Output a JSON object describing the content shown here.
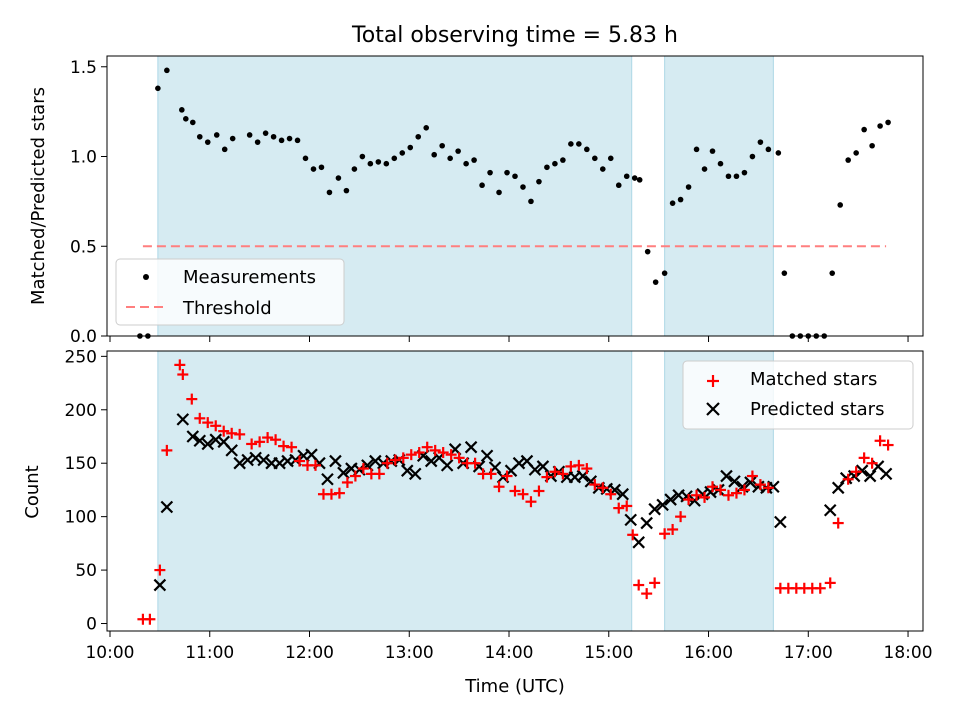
{
  "figure_title": "Total observing time = 5.83 h",
  "chart_data": [
    {
      "type": "scatter",
      "ylabel": "Matched/Predicted stars",
      "xlim": [
        9.97,
        18.15
      ],
      "ylim": [
        0,
        1.56
      ],
      "yticks": [
        0.0,
        0.5,
        1.0,
        1.5
      ],
      "ytick_labels": [
        "0.0",
        "0.5",
        "1.0",
        "1.5"
      ],
      "grid": false,
      "legend": {
        "placement": "lower-left",
        "entries": [
          "Measurements",
          "Threshold"
        ]
      },
      "shaded_intervals": [
        [
          10.48,
          15.23
        ],
        [
          15.56,
          16.65
        ]
      ],
      "shade_color": "#add8e6",
      "threshold": {
        "name": "Threshold",
        "y": 0.5,
        "x": [
          10.33,
          17.78
        ],
        "color": "#ff7f7f"
      },
      "series": [
        {
          "name": "Measurements",
          "color": "#000000",
          "x": [
            10.3,
            10.38,
            10.48,
            10.57,
            10.72,
            10.76,
            10.83,
            10.9,
            10.98,
            11.07,
            11.15,
            11.23,
            11.4,
            11.48,
            11.56,
            11.64,
            11.72,
            11.8,
            11.88,
            11.96,
            12.04,
            12.12,
            12.2,
            12.29,
            12.37,
            12.45,
            12.53,
            12.61,
            12.69,
            12.77,
            12.85,
            12.93,
            13.01,
            13.09,
            13.17,
            13.25,
            13.33,
            13.41,
            13.49,
            13.57,
            13.65,
            13.73,
            13.81,
            13.9,
            13.98,
            14.06,
            14.14,
            14.22,
            14.3,
            14.38,
            14.46,
            14.54,
            14.62,
            14.7,
            14.78,
            14.86,
            14.94,
            15.02,
            15.1,
            15.18,
            15.26,
            15.31,
            15.39,
            15.47,
            15.56,
            15.64,
            15.72,
            15.8,
            15.88,
            15.96,
            16.04,
            16.12,
            16.2,
            16.28,
            16.36,
            16.44,
            16.52,
            16.6,
            16.7,
            16.76,
            16.84,
            16.92,
            17.0,
            17.08,
            17.16,
            17.24,
            17.32,
            17.4,
            17.48,
            17.56,
            17.64,
            17.72,
            17.8
          ],
          "y": [
            0.0,
            0.0,
            1.38,
            1.48,
            1.26,
            1.21,
            1.19,
            1.11,
            1.08,
            1.12,
            1.04,
            1.1,
            1.12,
            1.08,
            1.13,
            1.11,
            1.09,
            1.1,
            1.09,
            0.99,
            0.93,
            0.94,
            0.8,
            0.88,
            0.81,
            0.93,
            1.0,
            0.96,
            0.97,
            0.96,
            0.99,
            1.02,
            1.05,
            1.11,
            1.16,
            1.01,
            1.06,
            0.99,
            1.03,
            0.96,
            0.98,
            0.84,
            0.91,
            0.8,
            0.91,
            0.89,
            0.83,
            0.75,
            0.86,
            0.94,
            0.96,
            0.98,
            1.07,
            1.07,
            1.04,
            0.99,
            0.93,
            0.99,
            0.84,
            0.89,
            0.88,
            0.87,
            0.47,
            0.3,
            0.35,
            0.74,
            0.76,
            0.83,
            1.04,
            0.93,
            1.03,
            0.96,
            0.89,
            0.89,
            0.91,
            1.0,
            1.08,
            1.04,
            1.02,
            0.35,
            0.0,
            0.0,
            0.0,
            0.0,
            0.0,
            0.35,
            0.73,
            0.98,
            1.02,
            1.15,
            1.06,
            1.17,
            1.19
          ]
        }
      ]
    },
    {
      "type": "scatter",
      "xlabel": "Time (UTC)",
      "ylabel": "Count",
      "xlim": [
        9.97,
        18.15
      ],
      "ylim": [
        -7,
        255
      ],
      "xticks": [
        10,
        11,
        12,
        13,
        14,
        15,
        16,
        17,
        18
      ],
      "xtick_labels": [
        "10:00",
        "11:00",
        "12:00",
        "13:00",
        "14:00",
        "15:00",
        "16:00",
        "17:00",
        "18:00"
      ],
      "yticks": [
        0,
        50,
        100,
        150,
        200,
        250
      ],
      "ytick_labels": [
        "0",
        "50",
        "100",
        "150",
        "200",
        "250"
      ],
      "grid": false,
      "legend": {
        "placement": "top-right",
        "entries": [
          "Matched stars",
          "Predicted stars"
        ]
      },
      "shaded_intervals": [
        [
          10.48,
          15.23
        ],
        [
          15.56,
          16.65
        ]
      ],
      "shade_color": "#add8e6",
      "series": [
        {
          "name": "Matched stars",
          "marker": "+",
          "color": "#ff0000",
          "x": [
            10.33,
            10.4,
            10.5,
            10.57,
            10.7,
            10.73,
            10.82,
            10.9,
            10.98,
            11.06,
            11.14,
            11.22,
            11.3,
            11.42,
            11.5,
            11.58,
            11.66,
            11.74,
            11.82,
            11.9,
            11.98,
            12.06,
            12.14,
            12.22,
            12.3,
            12.38,
            12.46,
            12.54,
            12.62,
            12.7,
            12.78,
            12.86,
            12.94,
            13.02,
            13.1,
            13.18,
            13.26,
            13.34,
            13.42,
            13.5,
            13.58,
            13.66,
            13.74,
            13.82,
            13.9,
            13.98,
            14.06,
            14.14,
            14.22,
            14.3,
            14.38,
            14.46,
            14.54,
            14.62,
            14.7,
            14.78,
            14.86,
            14.94,
            15.02,
            15.1,
            15.18,
            15.24,
            15.3,
            15.38,
            15.46,
            15.56,
            15.64,
            15.72,
            15.8,
            15.88,
            15.96,
            16.04,
            16.12,
            16.2,
            16.28,
            16.36,
            16.44,
            16.52,
            16.6,
            16.72,
            16.8,
            16.88,
            16.96,
            17.04,
            17.12,
            17.22,
            17.3,
            17.4,
            17.48,
            17.56,
            17.64,
            17.72,
            17.8
          ],
          "y": [
            4,
            4,
            50,
            162,
            242,
            233,
            210,
            192,
            188,
            185,
            180,
            178,
            177,
            168,
            170,
            174,
            172,
            166,
            165,
            152,
            148,
            148,
            121,
            121,
            122,
            132,
            138,
            145,
            140,
            140,
            150,
            153,
            155,
            158,
            160,
            165,
            162,
            160,
            158,
            155,
            150,
            150,
            140,
            140,
            128,
            138,
            124,
            121,
            114,
            124,
            137,
            142,
            140,
            147,
            148,
            145,
            130,
            127,
            121,
            108,
            110,
            83,
            36,
            28,
            38,
            84,
            88,
            100,
            116,
            120,
            118,
            128,
            125,
            120,
            122,
            125,
            138,
            130,
            127,
            33,
            33,
            33,
            33,
            33,
            33,
            38,
            94,
            135,
            142,
            155,
            150,
            171,
            167
          ]
        },
        {
          "name": "Predicted stars",
          "marker": "x",
          "color": "#000000",
          "x": [
            10.5,
            10.57,
            10.73,
            10.83,
            10.9,
            10.98,
            11.06,
            11.14,
            11.22,
            11.3,
            11.38,
            11.46,
            11.54,
            11.62,
            11.7,
            11.78,
            11.86,
            11.94,
            12.02,
            12.1,
            12.18,
            12.26,
            12.34,
            12.42,
            12.5,
            12.58,
            12.66,
            12.74,
            12.82,
            12.9,
            12.98,
            13.06,
            13.14,
            13.22,
            13.3,
            13.38,
            13.46,
            13.54,
            13.62,
            13.7,
            13.78,
            13.86,
            13.94,
            14.02,
            14.1,
            14.18,
            14.26,
            14.34,
            14.42,
            14.5,
            14.58,
            14.66,
            14.74,
            14.82,
            14.9,
            14.98,
            15.06,
            15.14,
            15.22,
            15.3,
            15.38,
            15.46,
            15.54,
            15.62,
            15.7,
            15.78,
            15.86,
            15.94,
            16.02,
            16.1,
            16.18,
            16.26,
            16.34,
            16.42,
            16.5,
            16.58,
            16.65,
            16.72,
            17.22,
            17.3,
            17.38,
            17.46,
            17.54,
            17.62,
            17.7,
            17.78
          ],
          "y": [
            36,
            109,
            191,
            175,
            171,
            168,
            172,
            170,
            162,
            150,
            153,
            155,
            153,
            150,
            150,
            152,
            153,
            157,
            158,
            150,
            135,
            152,
            141,
            145,
            144,
            148,
            152,
            150,
            152,
            153,
            143,
            140,
            157,
            152,
            155,
            148,
            163,
            150,
            165,
            147,
            157,
            146,
            137,
            143,
            150,
            152,
            144,
            147,
            138,
            142,
            137,
            137,
            138,
            133,
            127,
            126,
            125,
            121,
            97,
            76,
            94,
            107,
            111,
            116,
            120,
            119,
            115,
            121,
            123,
            125,
            138,
            133,
            128,
            132,
            128,
            127,
            128,
            95,
            106,
            127,
            136,
            138,
            143,
            138,
            147,
            140
          ]
        }
      ]
    }
  ]
}
